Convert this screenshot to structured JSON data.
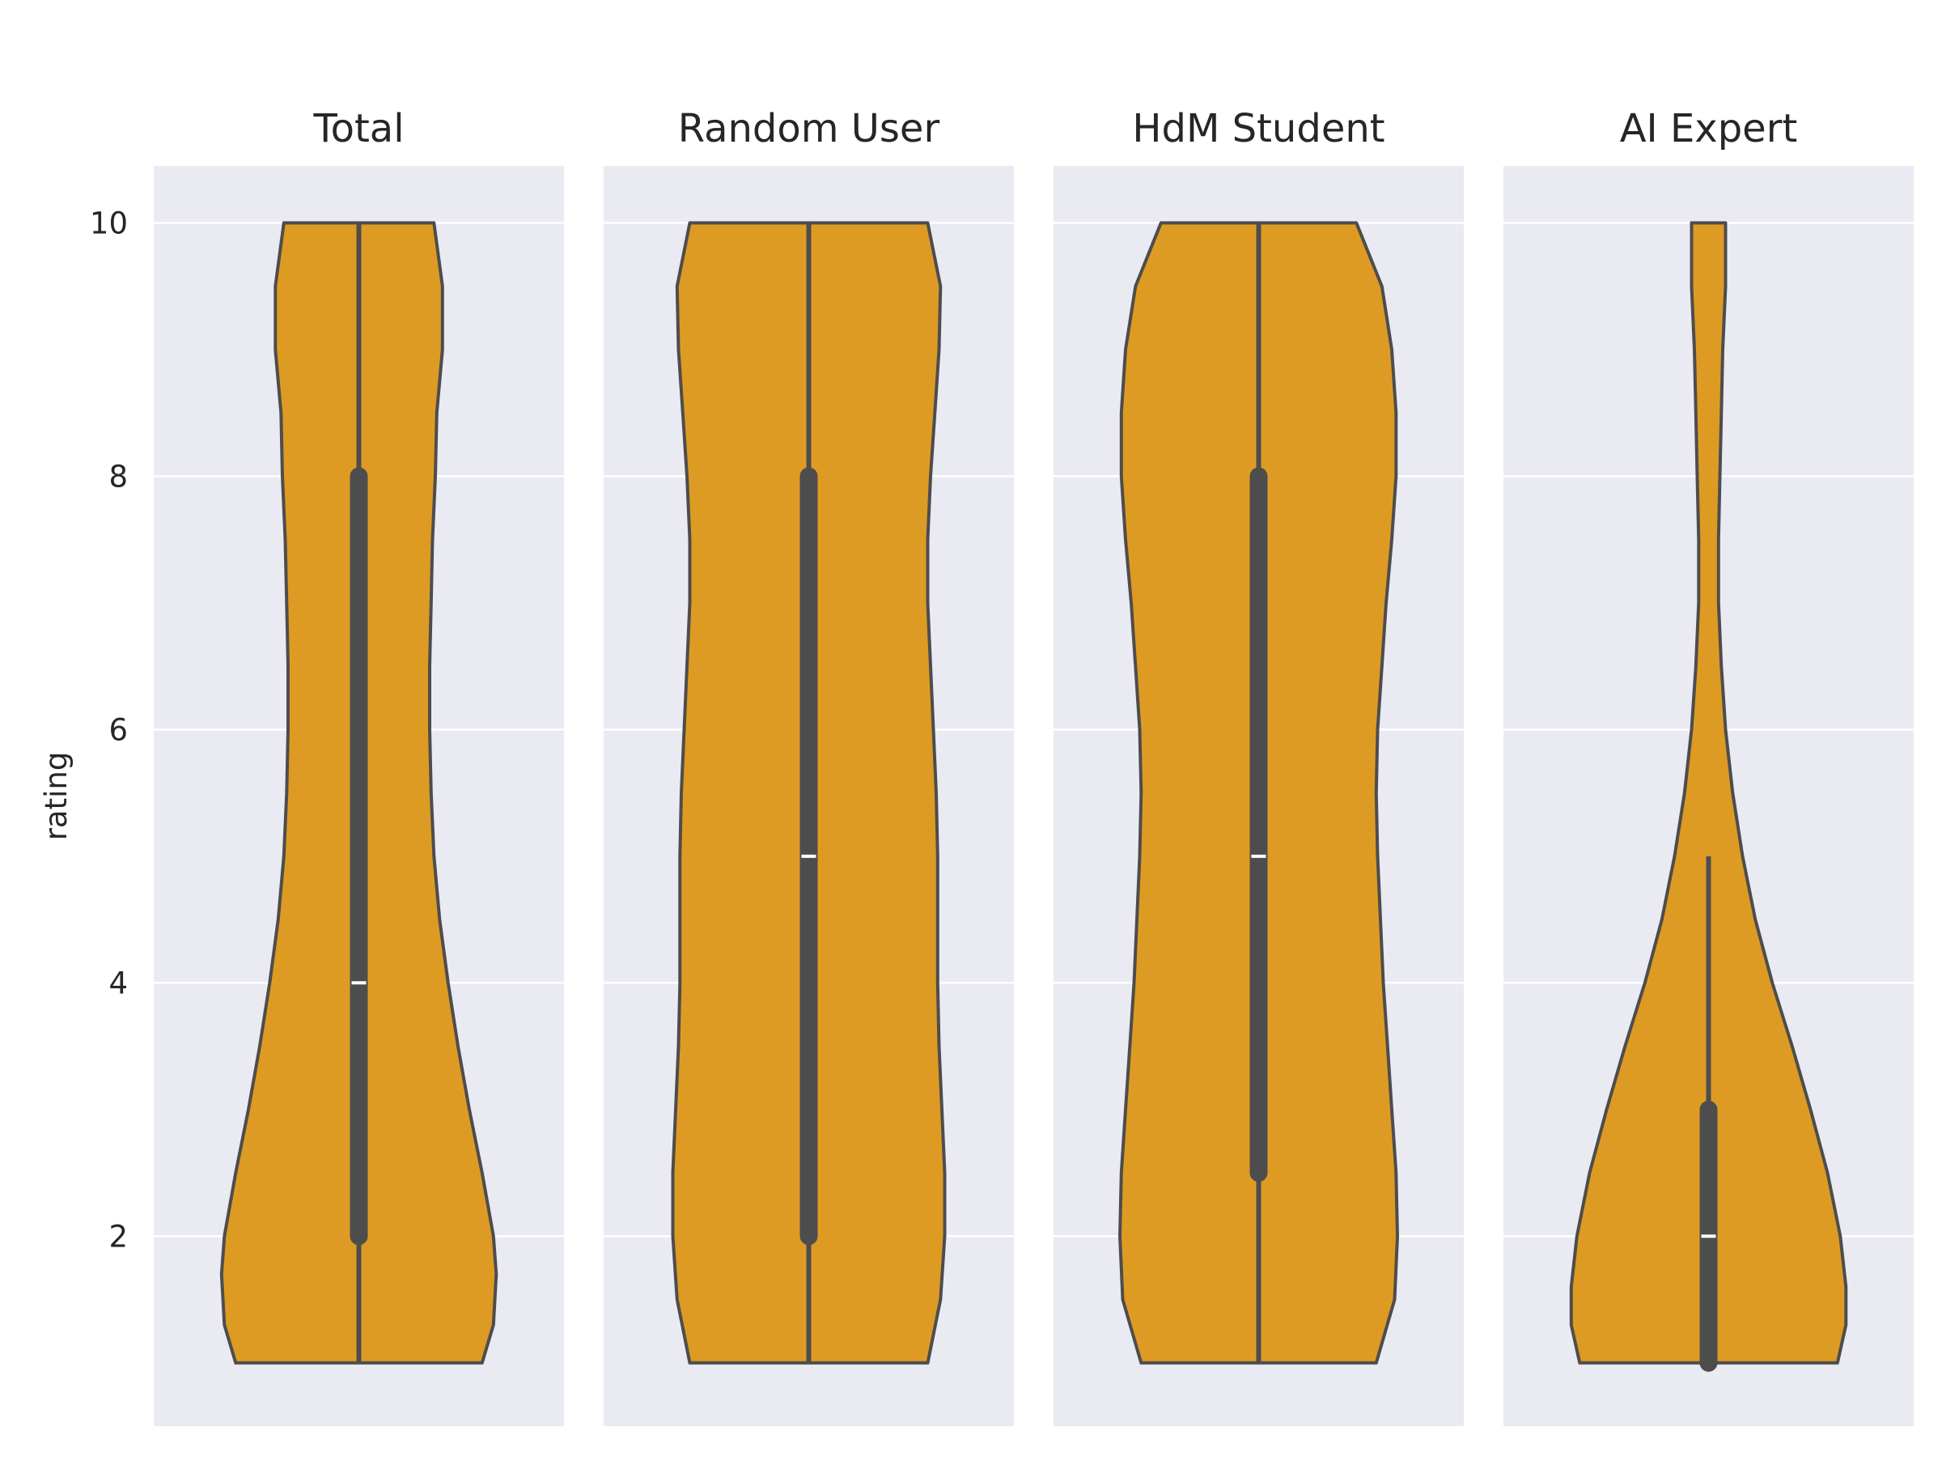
{
  "chart_data": {
    "type": "violin",
    "ylabel": "rating",
    "ylim": [
      0.5,
      10.45
    ],
    "yticks": [
      2,
      4,
      6,
      8,
      10
    ],
    "grid": true,
    "colors": {
      "violin_fill": "#DE9B23",
      "violin_edge": "#4D4D4D",
      "panel_bg": "#EAEAF2",
      "grid": "#FFFFFF",
      "median_mark": "#FFFFFF"
    },
    "panels": [
      {
        "title": "Total",
        "min": 1,
        "max": 10,
        "q1": 2,
        "median": 4,
        "q3": 8,
        "whisker_low": 1,
        "whisker_high": 10,
        "density": [
          [
            1,
            0.87
          ],
          [
            1.3,
            0.95
          ],
          [
            1.7,
            0.97
          ],
          [
            2,
            0.95
          ],
          [
            2.5,
            0.87
          ],
          [
            3,
            0.78
          ],
          [
            3.5,
            0.7
          ],
          [
            4,
            0.63
          ],
          [
            4.5,
            0.57
          ],
          [
            5,
            0.53
          ],
          [
            5.5,
            0.51
          ],
          [
            6,
            0.5
          ],
          [
            6.5,
            0.5
          ],
          [
            7,
            0.51
          ],
          [
            7.5,
            0.52
          ],
          [
            8,
            0.54
          ],
          [
            8.5,
            0.55
          ],
          [
            9,
            0.59
          ],
          [
            9.5,
            0.59
          ],
          [
            10,
            0.53
          ]
        ]
      },
      {
        "title": "Random User",
        "min": 1,
        "max": 10,
        "q1": 2,
        "median": 5,
        "q3": 8,
        "whisker_low": 1,
        "whisker_high": 10,
        "density": [
          [
            1,
            0.84
          ],
          [
            1.5,
            0.93
          ],
          [
            2,
            0.96
          ],
          [
            2.5,
            0.96
          ],
          [
            3,
            0.94
          ],
          [
            3.5,
            0.92
          ],
          [
            4,
            0.91
          ],
          [
            5,
            0.91
          ],
          [
            5.5,
            0.9
          ],
          [
            6,
            0.88
          ],
          [
            6.5,
            0.86
          ],
          [
            7,
            0.84
          ],
          [
            7.5,
            0.84
          ],
          [
            8,
            0.86
          ],
          [
            8.5,
            0.89
          ],
          [
            9,
            0.92
          ],
          [
            9.5,
            0.93
          ],
          [
            10,
            0.84
          ]
        ]
      },
      {
        "title": "HdM Student",
        "min": 1,
        "max": 10,
        "q1": 2.5,
        "median": 5,
        "q3": 8,
        "whisker_low": 1,
        "whisker_high": 10,
        "density": [
          [
            1,
            0.83
          ],
          [
            1.5,
            0.96
          ],
          [
            2,
            0.98
          ],
          [
            2.5,
            0.97
          ],
          [
            3,
            0.94
          ],
          [
            3.5,
            0.91
          ],
          [
            4,
            0.88
          ],
          [
            4.5,
            0.86
          ],
          [
            5,
            0.84
          ],
          [
            5.5,
            0.83
          ],
          [
            6,
            0.84
          ],
          [
            6.5,
            0.87
          ],
          [
            7,
            0.9
          ],
          [
            7.5,
            0.94
          ],
          [
            8,
            0.97
          ],
          [
            8.5,
            0.97
          ],
          [
            9,
            0.94
          ],
          [
            9.5,
            0.87
          ],
          [
            10,
            0.69
          ]
        ]
      },
      {
        "title": "AI Expert",
        "min": 1,
        "max": 10,
        "q1": 1,
        "median": 2,
        "q3": 3,
        "whisker_low": 1,
        "whisker_high": 5,
        "density": [
          [
            1,
            0.91
          ],
          [
            1.3,
            0.97
          ],
          [
            1.6,
            0.97
          ],
          [
            2,
            0.93
          ],
          [
            2.5,
            0.84
          ],
          [
            3,
            0.72
          ],
          [
            3.5,
            0.59
          ],
          [
            4,
            0.45
          ],
          [
            4.5,
            0.33
          ],
          [
            5,
            0.24
          ],
          [
            5.5,
            0.17
          ],
          [
            6,
            0.12
          ],
          [
            6.5,
            0.09
          ],
          [
            7,
            0.07
          ],
          [
            7.5,
            0.07
          ],
          [
            8,
            0.08
          ],
          [
            8.5,
            0.09
          ],
          [
            9,
            0.1
          ],
          [
            9.5,
            0.12
          ],
          [
            10,
            0.12
          ]
        ]
      }
    ]
  }
}
